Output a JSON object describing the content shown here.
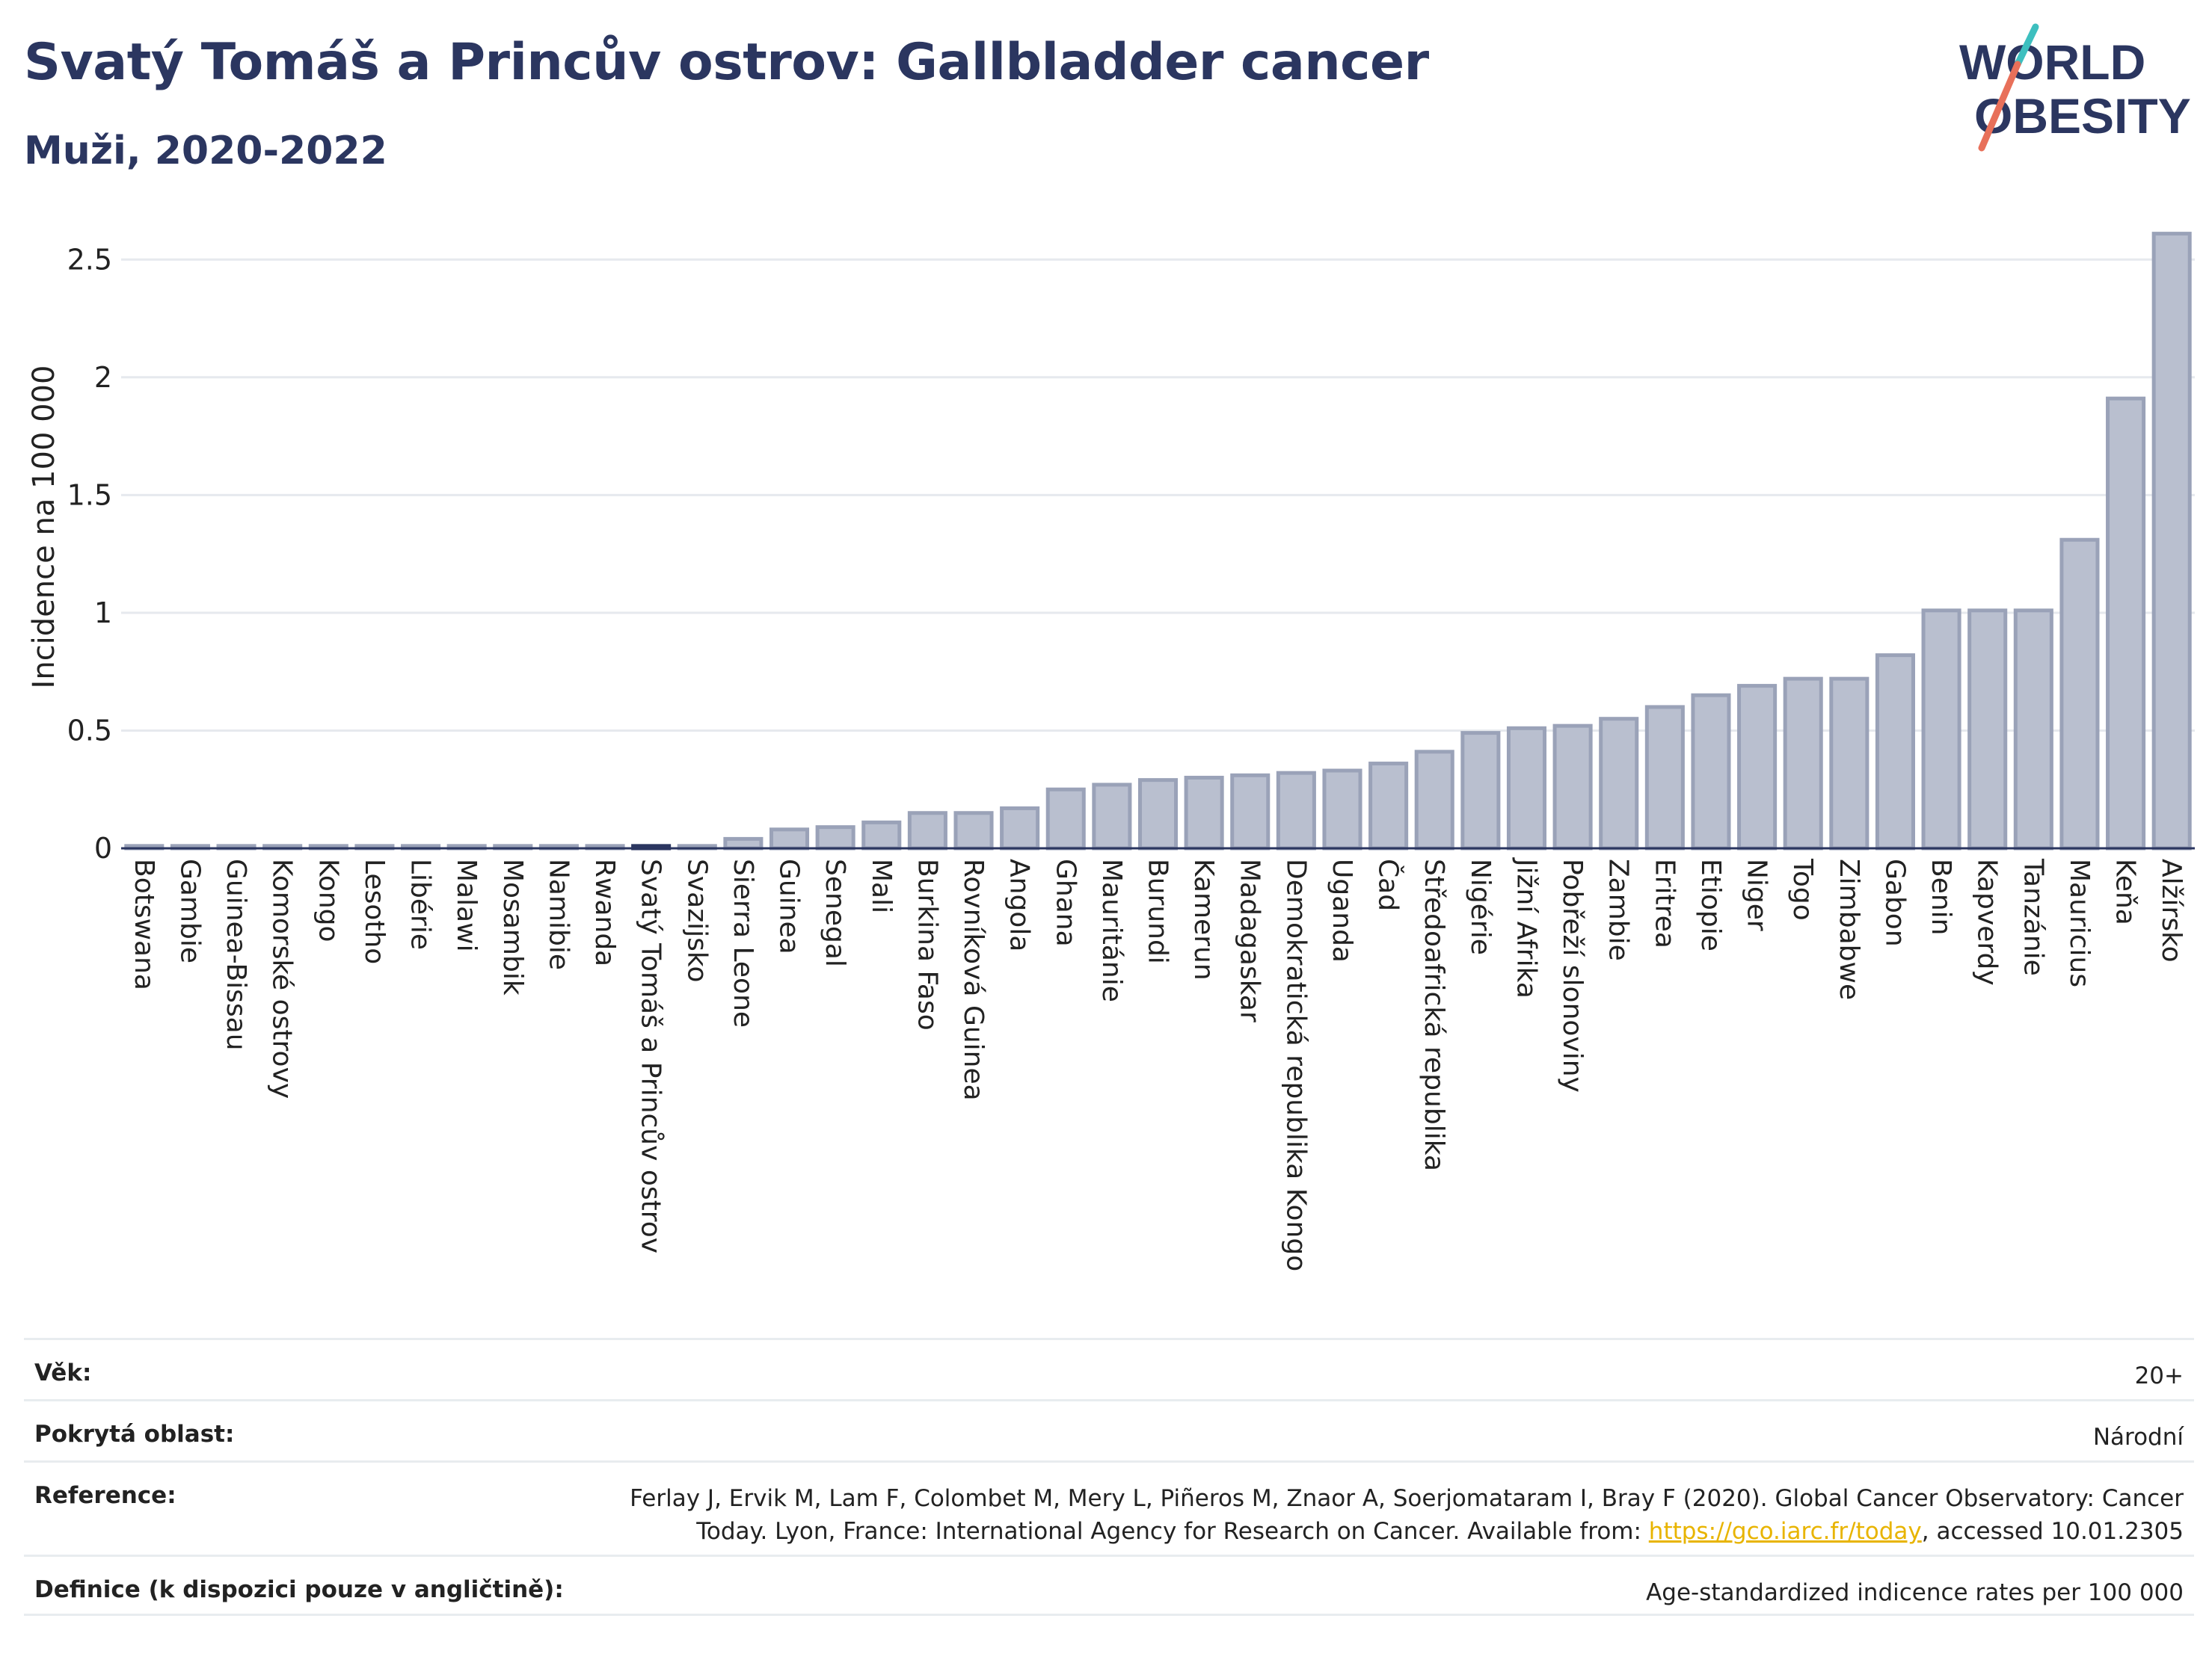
{
  "header": {
    "title": "Svatý Tomáš a Princův ostrov: Gallbladder cancer",
    "subtitle": "Muži, 2020-2022"
  },
  "logo": {
    "line1": "WORLD",
    "line2": "OBESITY",
    "accent_colors": [
      "#3dbfbf",
      "#e8705a"
    ]
  },
  "chart_data": {
    "type": "bar",
    "ylabel": "Incidence na 100 000",
    "ylim": [
      0,
      2.65
    ],
    "yticks": [
      0,
      0.5,
      1,
      1.5,
      2,
      2.5
    ],
    "ytick_labels": [
      "0",
      "0.5",
      "1",
      "1.5",
      "2",
      "2.5"
    ],
    "grid": true,
    "highlight": "Svatý Tomáš a Princův ostrov",
    "bar_color": "#b9bfcf",
    "bar_edge_color": "#9aa2b8",
    "highlight_color": "#2b3660",
    "categories": [
      "Botswana",
      "Gambie",
      "Guinea-Bissau",
      "Komorské ostrovy",
      "Kongo",
      "Lesotho",
      "Libérie",
      "Malawi",
      "Mosambik",
      "Namibie",
      "Rwanda",
      "Svatý Tomáš a Princův ostrov",
      "Svazijsko",
      "Sierra Leone",
      "Guinea",
      "Senegal",
      "Mali",
      "Burkina Faso",
      "Rovníková Guinea",
      "Angola",
      "Ghana",
      "Mauritánie",
      "Burundi",
      "Kamerun",
      "Madagaskar",
      "Demokratická republika Kongo",
      "Uganda",
      "Čad",
      "Středoafrická republika",
      "Nigérie",
      "Jižní Afrika",
      "Pobřeží slonoviny",
      "Zambie",
      "Eritrea",
      "Etiopie",
      "Niger",
      "Togo",
      "Zimbabwe",
      "Gabon",
      "Benin",
      "Kapverdy",
      "Tanzánie",
      "Mauricius",
      "Keňa",
      "Alžírsko"
    ],
    "values": [
      0.01,
      0.01,
      0.01,
      0.01,
      0.01,
      0.01,
      0.01,
      0.01,
      0.01,
      0.01,
      0.01,
      0.01,
      0.01,
      0.04,
      0.08,
      0.09,
      0.11,
      0.15,
      0.15,
      0.17,
      0.25,
      0.27,
      0.29,
      0.3,
      0.31,
      0.32,
      0.33,
      0.36,
      0.41,
      0.49,
      0.51,
      0.52,
      0.55,
      0.6,
      0.65,
      0.69,
      0.72,
      0.72,
      0.82,
      1.01,
      1.01,
      1.01,
      1.31,
      1.91,
      2.61
    ]
  },
  "info": {
    "age_label": "Věk:",
    "age_value": "20+",
    "area_label": "Pokrytá oblast:",
    "area_value": "Národní",
    "reference_label": "Reference:",
    "reference_line1": "Ferlay J, Ervik M, Lam F, Colombet M, Mery L, Piñeros M, Znaor A, Soerjomataram I, Bray F (2020). Global Cancer Observatory: Cancer",
    "reference_line2_pre": "Today. Lyon, France: International Agency for Research on Cancer. Available from: ",
    "reference_link": "https://gco.iarc.fr/today",
    "reference_line2_post": ", accessed 10.01.2305",
    "definition_label": "Definice (k dispozici pouze v angličtině):",
    "definition_value": "Age-standardized indicence rates per 100 000"
  }
}
